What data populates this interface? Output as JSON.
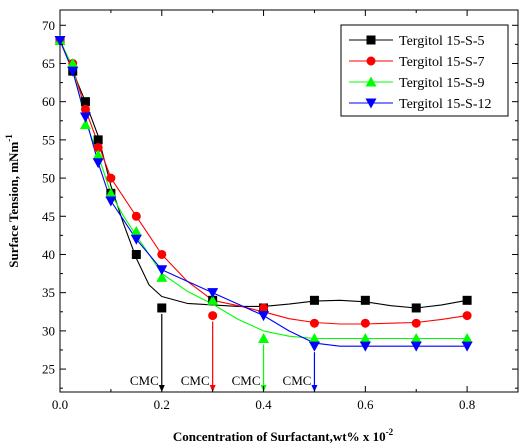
{
  "chart_data": {
    "type": "line",
    "xlabel": "Concentration of Surfactant,wt% x 10",
    "xlabel_sup": "-2",
    "ylabel": "Surface Tension, mNm",
    "ylabel_sup": "-1",
    "xlim": [
      0.0,
      0.9
    ],
    "ylim": [
      22,
      72
    ],
    "xticks": [
      0.0,
      0.2,
      0.4,
      0.6,
      0.8
    ],
    "xtick_labels": [
      "0.0",
      "0.2",
      "0.4",
      "0.6",
      "0.8"
    ],
    "yticks": [
      25,
      30,
      35,
      40,
      45,
      50,
      55,
      60,
      65,
      70
    ],
    "ytick_labels": [
      "25",
      "30",
      "35",
      "40",
      "45",
      "50",
      "55",
      "60",
      "65",
      "70"
    ],
    "grid": false,
    "legend_position": "top-right",
    "series": [
      {
        "name": "Tergitol 15-S-5",
        "marker": "square",
        "color": "#000000",
        "x": [
          0.0,
          0.025,
          0.05,
          0.075,
          0.1,
          0.15,
          0.2,
          0.3,
          0.4,
          0.5,
          0.6,
          0.7,
          0.8
        ],
        "y": [
          68,
          64,
          60,
          55,
          48,
          40,
          33,
          34,
          33,
          34,
          34,
          33,
          34
        ],
        "curve_x": [
          0.0,
          0.025,
          0.05,
          0.075,
          0.1,
          0.125,
          0.15,
          0.175,
          0.2,
          0.25,
          0.3,
          0.35,
          0.4,
          0.45,
          0.5,
          0.55,
          0.6,
          0.65,
          0.7,
          0.75,
          0.8
        ],
        "curve_y": [
          68,
          64,
          60,
          55.5,
          49,
          44,
          39.5,
          36,
          34.5,
          33.6,
          33.4,
          33.2,
          33.2,
          33.5,
          33.9,
          34.0,
          33.8,
          33.3,
          33.0,
          33.4,
          34
        ]
      },
      {
        "name": "Tergitol 15-S-7",
        "marker": "circle",
        "color": "#ff0000",
        "x": [
          0.0,
          0.025,
          0.05,
          0.075,
          0.1,
          0.15,
          0.2,
          0.3,
          0.4,
          0.5,
          0.6,
          0.7,
          0.8
        ],
        "y": [
          68,
          65,
          59,
          54,
          50,
          45,
          40,
          32,
          33,
          31,
          31,
          31,
          32
        ],
        "curve_x": [
          0.0,
          0.025,
          0.05,
          0.075,
          0.1,
          0.125,
          0.15,
          0.175,
          0.2,
          0.25,
          0.3,
          0.35,
          0.4,
          0.45,
          0.5,
          0.55,
          0.6,
          0.65,
          0.7,
          0.75,
          0.8
        ],
        "curve_y": [
          68,
          64.5,
          59,
          54.5,
          50,
          47.5,
          45,
          42.5,
          40,
          36.5,
          34,
          33.3,
          32.5,
          31.6,
          31.1,
          30.9,
          30.9,
          31.0,
          31.1,
          31.5,
          32
        ]
      },
      {
        "name": "Tergitol 15-S-9",
        "marker": "triangle-up",
        "color": "#00ff00",
        "x": [
          0.0,
          0.025,
          0.05,
          0.075,
          0.1,
          0.15,
          0.2,
          0.3,
          0.4,
          0.5,
          0.6,
          0.7,
          0.8
        ],
        "y": [
          68,
          65,
          57,
          53,
          48,
          43,
          37,
          34,
          29,
          29,
          29,
          29,
          29
        ],
        "curve_x": [
          0.0,
          0.025,
          0.05,
          0.075,
          0.1,
          0.125,
          0.15,
          0.175,
          0.2,
          0.25,
          0.3,
          0.35,
          0.4,
          0.45,
          0.5,
          0.55,
          0.6,
          0.65,
          0.7,
          0.75,
          0.8
        ],
        "curve_y": [
          68,
          64.5,
          57.5,
          53,
          48,
          45,
          42.5,
          40,
          37.5,
          35.2,
          33.5,
          31.5,
          30,
          29.3,
          29,
          29,
          29,
          29,
          29,
          29,
          29
        ]
      },
      {
        "name": "Tergitol 15-S-12",
        "marker": "triangle-down",
        "color": "#0000ff",
        "x": [
          0.0,
          0.025,
          0.05,
          0.075,
          0.1,
          0.15,
          0.2,
          0.3,
          0.4,
          0.5,
          0.6,
          0.7,
          0.8
        ],
        "y": [
          68,
          64,
          58,
          52,
          47,
          42,
          38,
          35,
          32,
          28,
          28,
          28,
          28
        ],
        "curve_x": [
          0.0,
          0.025,
          0.05,
          0.075,
          0.1,
          0.125,
          0.15,
          0.175,
          0.2,
          0.25,
          0.3,
          0.35,
          0.4,
          0.45,
          0.5,
          0.55,
          0.6,
          0.65,
          0.7,
          0.75,
          0.8
        ],
        "curve_y": [
          68,
          64,
          58,
          52,
          47,
          44.5,
          42,
          40,
          38,
          36.5,
          35,
          33.5,
          32,
          30,
          28.4,
          28,
          28,
          28,
          28,
          28,
          28
        ]
      }
    ],
    "annotations": [
      {
        "text": "CMC",
        "x": 0.2,
        "y_top": 33,
        "color": "#000000"
      },
      {
        "text": "CMC",
        "x": 0.3,
        "y_top": 32,
        "color": "#ff0000"
      },
      {
        "text": "CMC",
        "x": 0.4,
        "y_top": 29,
        "color": "#00ff00"
      },
      {
        "text": "CMC",
        "x": 0.5,
        "y_top": 28,
        "color": "#0000ff"
      }
    ]
  }
}
